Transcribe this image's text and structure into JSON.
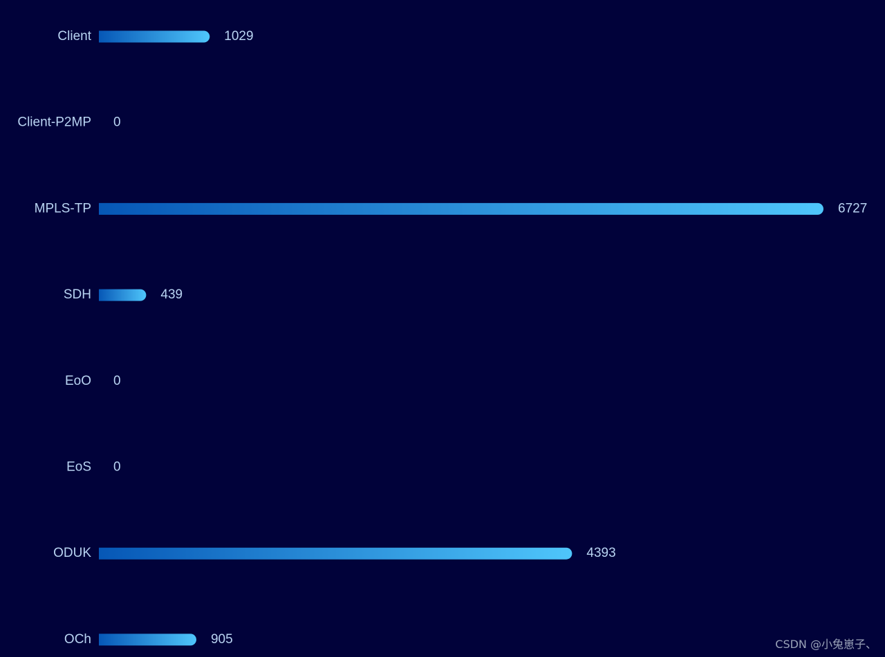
{
  "chart_data": {
    "type": "bar",
    "orientation": "horizontal",
    "categories": [
      "Client",
      "Client-P2MP",
      "MPLS-TP",
      "SDH",
      "EoO",
      "EoS",
      "ODUK",
      "OCh"
    ],
    "values": [
      1029,
      0,
      6727,
      439,
      0,
      0,
      4393,
      905
    ],
    "title": "",
    "xlabel": "",
    "ylabel": "",
    "xlim": [
      0,
      6727
    ],
    "grid": false,
    "legend": "none",
    "show_value_labels": true
  },
  "colors": {
    "background": "#01023a",
    "bar_start": "#0657b6",
    "bar_end": "#4fc6fb",
    "label": "#b9d4f2",
    "watermark": "#9aa3b8"
  },
  "watermark": {
    "text": "CSDN @小兔崽子、"
  }
}
